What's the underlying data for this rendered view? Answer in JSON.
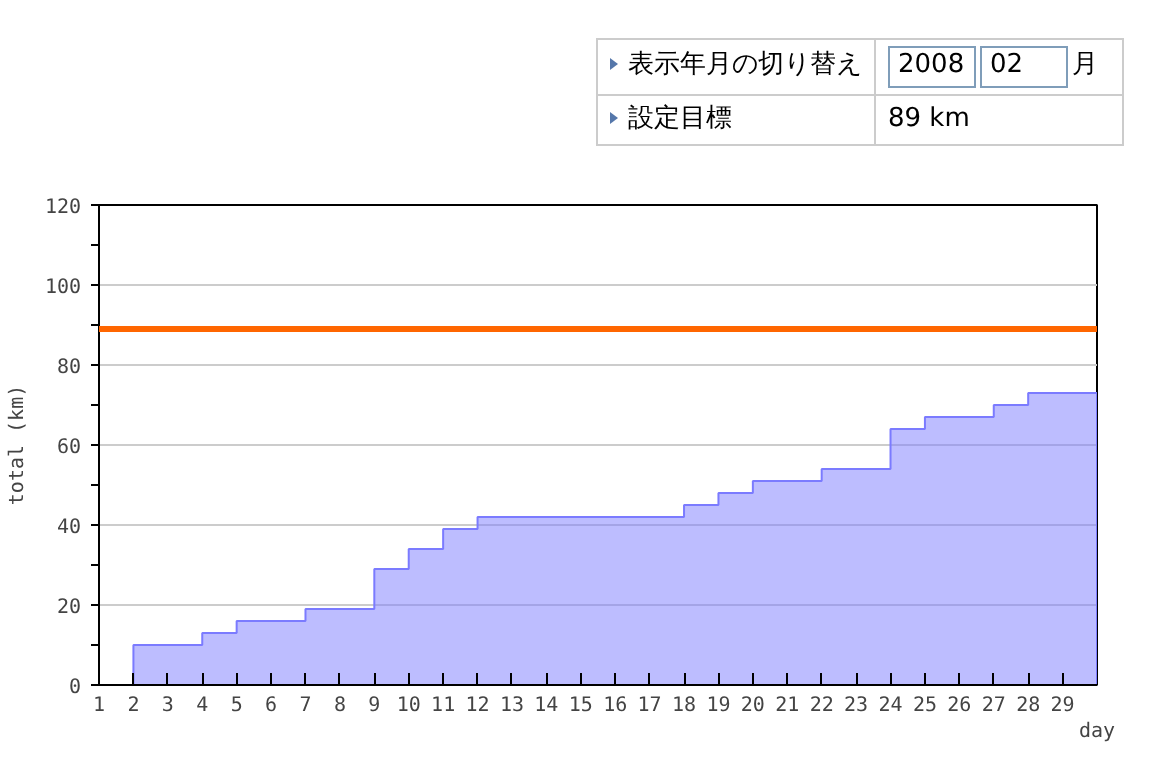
{
  "chart_data": {
    "type": "area",
    "xlabel": "day",
    "ylabel": "total (km)",
    "x": [
      2,
      3,
      4,
      5,
      6,
      7,
      8,
      9,
      10,
      11,
      12,
      13,
      14,
      15,
      16,
      17,
      18,
      19,
      20,
      21,
      22,
      23,
      24,
      25,
      26,
      27,
      28,
      29,
      30
    ],
    "series": [
      {
        "color": "#7b7bff",
        "values": [
          10,
          10,
          13,
          16,
          16,
          19,
          19,
          29,
          34,
          39,
          42,
          42,
          42,
          42,
          42,
          42,
          45,
          48,
          51,
          51,
          54,
          54,
          64,
          67,
          67,
          70,
          73,
          73,
          73
        ]
      }
    ],
    "xlim": [
      1,
      30
    ],
    "xticks": [
      1,
      2,
      3,
      4,
      5,
      6,
      7,
      8,
      9,
      10,
      11,
      12,
      13,
      14,
      15,
      16,
      17,
      18,
      19,
      20,
      21,
      22,
      23,
      24,
      25,
      26,
      27,
      28,
      29
    ],
    "ylim": [
      0,
      120
    ],
    "yticks": [
      0,
      20,
      40,
      60,
      80,
      100,
      120
    ],
    "grid": "y",
    "ref_lines": [
      {
        "axis": "y",
        "value": 89,
        "color": "#ff6600"
      }
    ],
    "annotations": [
      "表示年月の切り替え",
      "2008",
      "02",
      "月",
      "設定目標",
      "89 km"
    ]
  }
}
